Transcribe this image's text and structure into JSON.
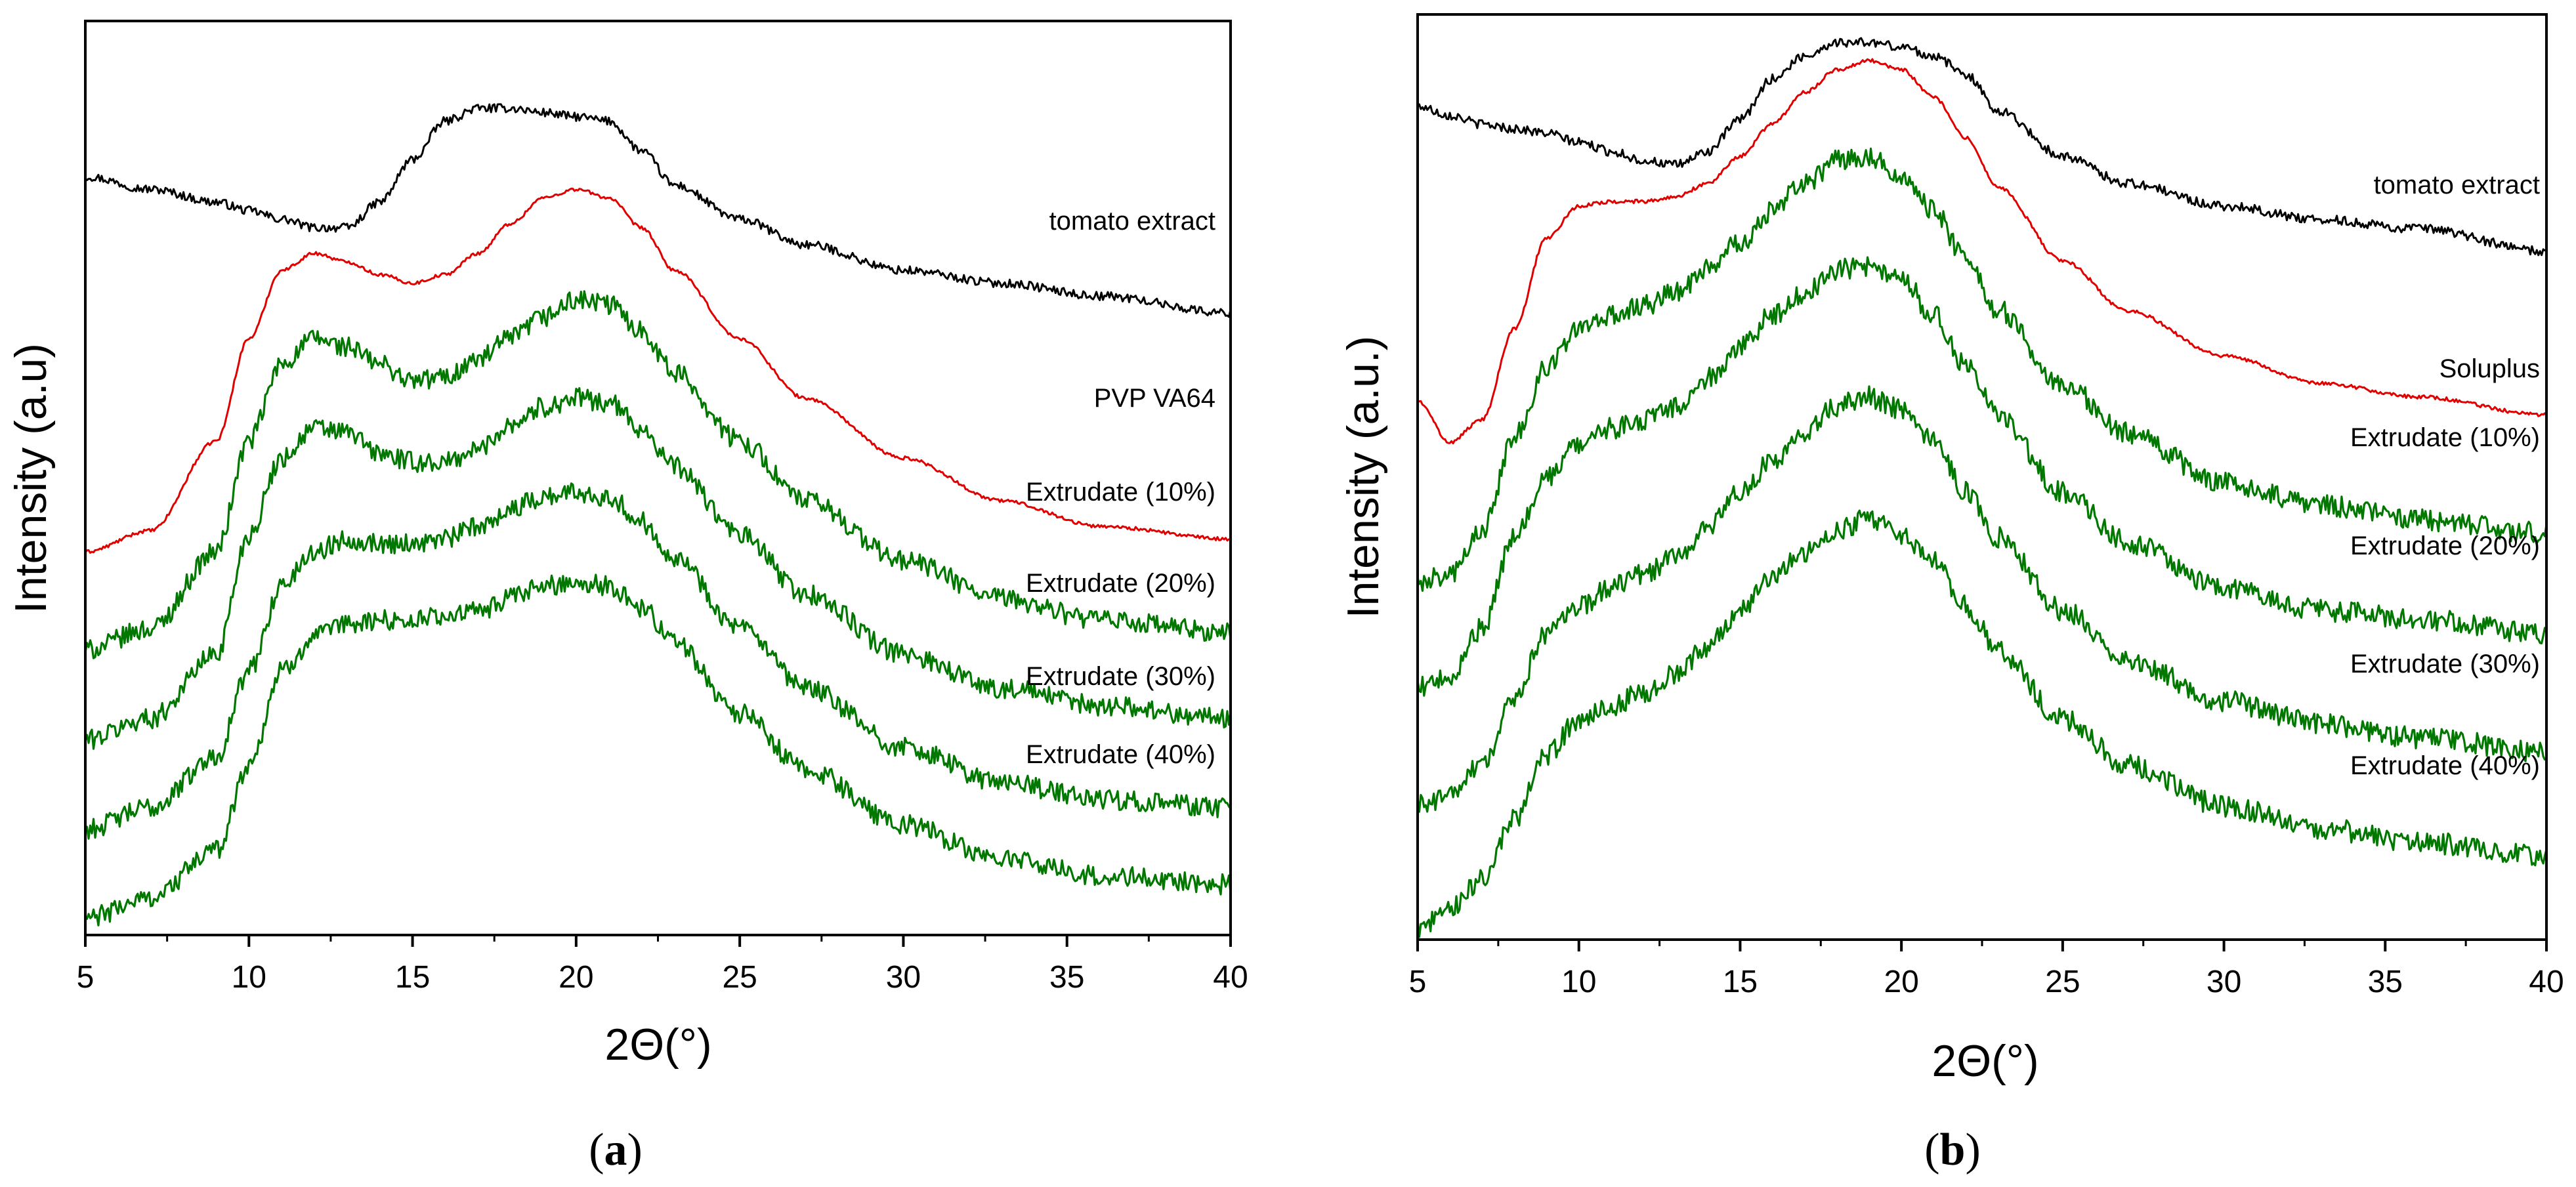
{
  "chart_data": [
    {
      "type": "line",
      "panel": "a",
      "panel_label": "(a)",
      "panel_label_parts": [
        "(",
        "a",
        ")"
      ],
      "xlabel": "2Θ(°)",
      "ylabel": "Intensity (a.u)",
      "xlim": [
        5,
        40
      ],
      "xticks": [
        5,
        10,
        15,
        20,
        25,
        30,
        35,
        40
      ],
      "ylim": [
        0,
        10
      ],
      "yticks_shown": false,
      "note": "Curves are vertically offset for display; y values are approximate stacked intensities in arbitrary units.",
      "x": [
        5,
        7,
        9,
        10,
        11,
        12,
        13,
        14,
        15,
        16,
        17,
        18,
        19,
        20,
        21,
        22,
        23,
        25,
        27,
        30,
        33,
        36,
        40
      ],
      "series": [
        {
          "name": "tomato extract",
          "color": "#000000",
          "noise": 0.05,
          "values": [
            8.7,
            8.55,
            8.4,
            8.3,
            8.2,
            8.1,
            8.1,
            8.4,
            8.9,
            9.35,
            9.5,
            9.5,
            9.45,
            9.4,
            9.35,
            9.0,
            8.6,
            8.2,
            7.9,
            7.6,
            7.45,
            7.3,
            7.1
          ]
        },
        {
          "name": "PVP VA64",
          "color": "#e00000",
          "noise": 0.02,
          "values": [
            4.3,
            4.55,
            5.6,
            6.8,
            7.6,
            7.8,
            7.7,
            7.55,
            7.45,
            7.55,
            7.8,
            8.15,
            8.45,
            8.55,
            8.45,
            8.1,
            7.6,
            6.8,
            6.1,
            5.4,
            4.9,
            4.6,
            4.45
          ]
        },
        {
          "name": "Extrudate (10%)",
          "color": "#007800",
          "noise": 0.12,
          "values": [
            3.15,
            3.4,
            4.3,
            5.6,
            6.5,
            6.8,
            6.7,
            6.5,
            6.3,
            6.35,
            6.55,
            6.8,
            7.05,
            7.25,
            7.2,
            6.9,
            6.4,
            5.6,
            4.9,
            4.2,
            3.75,
            3.5,
            3.35
          ]
        },
        {
          "name": "Extrudate (20%)",
          "color": "#007800",
          "noise": 0.12,
          "values": [
            2.1,
            2.35,
            3.1,
            4.5,
            5.4,
            5.75,
            5.7,
            5.45,
            5.35,
            5.35,
            5.5,
            5.8,
            6.0,
            6.1,
            6.05,
            5.75,
            5.3,
            4.5,
            3.8,
            3.1,
            2.7,
            2.5,
            2.35
          ]
        },
        {
          "name": "Extrudate (30%)",
          "color": "#007800",
          "noise": 0.12,
          "values": [
            1.05,
            1.3,
            1.9,
            2.9,
            3.9,
            4.3,
            4.45,
            4.4,
            4.4,
            4.45,
            4.6,
            4.8,
            4.95,
            5.0,
            4.95,
            4.65,
            4.25,
            3.4,
            2.7,
            2.0,
            1.6,
            1.4,
            1.3
          ]
        },
        {
          "name": "Extrudate (40%)",
          "color": "#007800",
          "noise": 0.12,
          "values": [
            0.0,
            0.25,
            0.8,
            1.8,
            2.9,
            3.3,
            3.45,
            3.5,
            3.5,
            3.55,
            3.6,
            3.75,
            3.9,
            3.95,
            3.9,
            3.65,
            3.25,
            2.4,
            1.75,
            1.1,
            0.7,
            0.5,
            0.4
          ]
        }
      ],
      "annotations": [
        "tomato extract",
        "PVP VA64",
        "Extrudate (10%)",
        "Extrudate (20%)",
        "Extrudate (30%)",
        "Extrudate (40%)"
      ]
    },
    {
      "type": "line",
      "panel": "b",
      "panel_label": "(b)",
      "panel_label_parts": [
        "(",
        "b",
        ")"
      ],
      "xlabel": "2Θ(°)",
      "ylabel": "Intensity (a.u.)",
      "xlim": [
        5,
        40
      ],
      "xticks": [
        5,
        10,
        15,
        20,
        25,
        30,
        35,
        40
      ],
      "ylim": [
        0,
        10
      ],
      "yticks_shown": false,
      "note": "Curves are vertically offset for display; y values are approximate stacked intensities in arbitrary units.",
      "x": [
        5,
        6,
        7,
        8,
        9,
        10,
        11,
        12,
        13,
        14,
        15,
        16,
        17,
        18,
        19,
        20,
        21,
        22,
        23,
        25,
        27,
        30,
        33,
        36,
        40
      ],
      "series": [
        {
          "name": "tomato extract",
          "color": "#000000",
          "noise": 0.05,
          "values": [
            9.05,
            8.95,
            8.85,
            8.8,
            8.75,
            8.65,
            8.55,
            8.45,
            8.4,
            8.55,
            8.9,
            9.35,
            9.6,
            9.75,
            9.75,
            9.7,
            9.6,
            9.4,
            9.0,
            8.5,
            8.2,
            7.95,
            7.8,
            7.7,
            7.45
          ]
        },
        {
          "name": "Soluplus",
          "color": "#e00000",
          "noise": 0.02,
          "values": [
            5.8,
            5.35,
            5.6,
            6.6,
            7.6,
            7.95,
            8.0,
            8.0,
            8.05,
            8.2,
            8.5,
            8.85,
            9.2,
            9.45,
            9.55,
            9.45,
            9.15,
            8.7,
            8.15,
            7.35,
            6.8,
            6.3,
            6.0,
            5.85,
            5.65
          ]
        },
        {
          "name": "Extrudate (10%)",
          "color": "#007800",
          "noise": 0.12,
          "values": [
            3.8,
            3.9,
            4.35,
            5.4,
            6.2,
            6.6,
            6.75,
            6.85,
            7.0,
            7.25,
            7.55,
            7.9,
            8.2,
            8.45,
            8.5,
            8.3,
            7.9,
            7.35,
            6.8,
            6.0,
            5.45,
            4.9,
            4.65,
            4.5,
            4.35
          ]
        },
        {
          "name": "Extrudate (20%)",
          "color": "#007800",
          "noise": 0.12,
          "values": [
            2.65,
            2.75,
            3.3,
            4.3,
            4.95,
            5.35,
            5.5,
            5.6,
            5.75,
            6.05,
            6.4,
            6.75,
            7.0,
            7.25,
            7.3,
            7.15,
            6.75,
            6.2,
            5.65,
            4.8,
            4.25,
            3.75,
            3.5,
            3.4,
            3.25
          ]
        },
        {
          "name": "Extrudate (30%)",
          "color": "#007800",
          "noise": 0.12,
          "values": [
            1.35,
            1.45,
            1.8,
            2.55,
            3.25,
            3.55,
            3.75,
            3.9,
            4.1,
            4.4,
            4.8,
            5.15,
            5.45,
            5.75,
            5.85,
            5.7,
            5.35,
            4.8,
            4.3,
            3.5,
            2.95,
            2.5,
            2.25,
            2.1,
            1.95
          ]
        },
        {
          "name": "Extrudate (40%)",
          "color": "#007800",
          "noise": 0.12,
          "values": [
            0.0,
            0.2,
            0.55,
            1.2,
            1.9,
            2.3,
            2.45,
            2.6,
            2.8,
            3.1,
            3.5,
            3.85,
            4.15,
            4.4,
            4.5,
            4.35,
            4.05,
            3.55,
            3.05,
            2.3,
            1.8,
            1.35,
            1.1,
            0.95,
            0.8
          ]
        }
      ],
      "annotations": [
        "tomato extract",
        "Soluplus",
        "Extrudate (10%)",
        "Extrudate (20%)",
        "Extrudate (30%)",
        "Extrudate (40%)"
      ]
    }
  ]
}
